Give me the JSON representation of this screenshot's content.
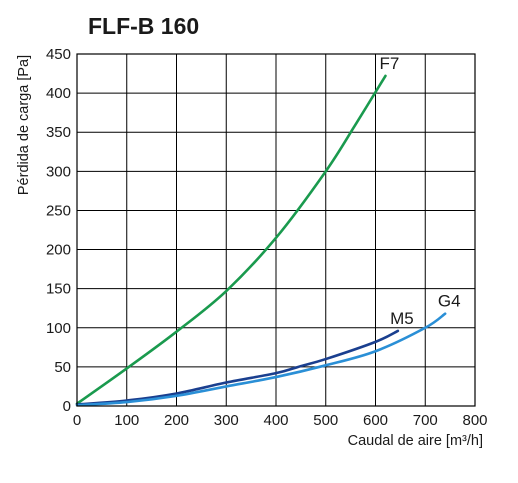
{
  "chart_data": {
    "type": "line",
    "title": "FLF-B 160",
    "xlabel": "Caudal de aire [m³/h]",
    "ylabel": "Pérdida de carga [Pa]",
    "xlim": [
      0,
      800
    ],
    "ylim": [
      0,
      450
    ],
    "xticks": [
      0,
      100,
      200,
      300,
      400,
      500,
      600,
      700,
      800
    ],
    "yticks": [
      0,
      50,
      100,
      150,
      200,
      250,
      300,
      350,
      400,
      450
    ],
    "grid": true,
    "series": [
      {
        "name": "F7",
        "color": "#1a9a4e",
        "x": [
          0,
          100,
          200,
          300,
          400,
          500,
          560,
          620
        ],
        "y": [
          3,
          48,
          95,
          147,
          215,
          300,
          360,
          422
        ]
      },
      {
        "name": "M5",
        "color": "#1a3f8f",
        "x": [
          0,
          100,
          200,
          300,
          400,
          450,
          500,
          600,
          645
        ],
        "y": [
          2,
          7,
          16,
          30,
          42,
          51,
          60,
          82,
          96
        ]
      },
      {
        "name": "G4",
        "color": "#2a8fd6",
        "x": [
          0,
          100,
          200,
          300,
          400,
          500,
          600,
          700,
          740
        ],
        "y": [
          1,
          5,
          13,
          25,
          37,
          52,
          70,
          100,
          118
        ]
      }
    ]
  }
}
